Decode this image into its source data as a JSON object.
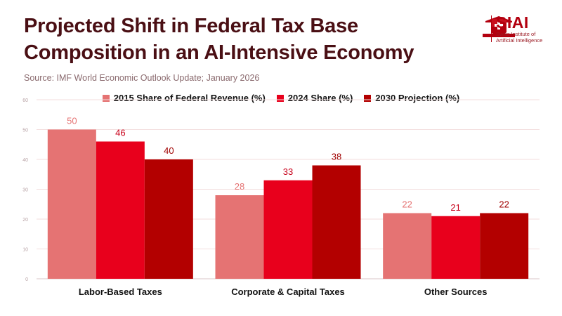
{
  "title_line1": "Projected Shift in Federal Tax Base",
  "title_line2": "Composition in an AI-Intensive Economy",
  "source": "Source: IMF World Economic Outlook Update; January 2026",
  "logo": {
    "main": "SIAI",
    "sub1": "Swiss Institute of",
    "sub2": "Artificial Intelligence",
    "brand_color": "#b3000f"
  },
  "chart_data": {
    "type": "bar",
    "categories": [
      "Labor-Based Taxes",
      "Corporate & Capital Taxes",
      "Other Sources"
    ],
    "series": [
      {
        "name": "2015 Share of Federal Revenue (%)",
        "values": [
          50,
          28,
          22
        ],
        "color": "#e57373"
      },
      {
        "name": "2024 Share (%)",
        "values": [
          46,
          33,
          21
        ],
        "color": "#e8001c"
      },
      {
        "name": "2030 Projection (%)",
        "values": [
          40,
          38,
          22
        ],
        "color": "#b30000"
      }
    ],
    "ylim": [
      0,
      60
    ],
    "yticks": [
      0,
      10,
      20,
      30,
      40,
      50,
      60
    ],
    "legend_position": "top-center",
    "grid": true,
    "xlabel": "",
    "ylabel": ""
  }
}
